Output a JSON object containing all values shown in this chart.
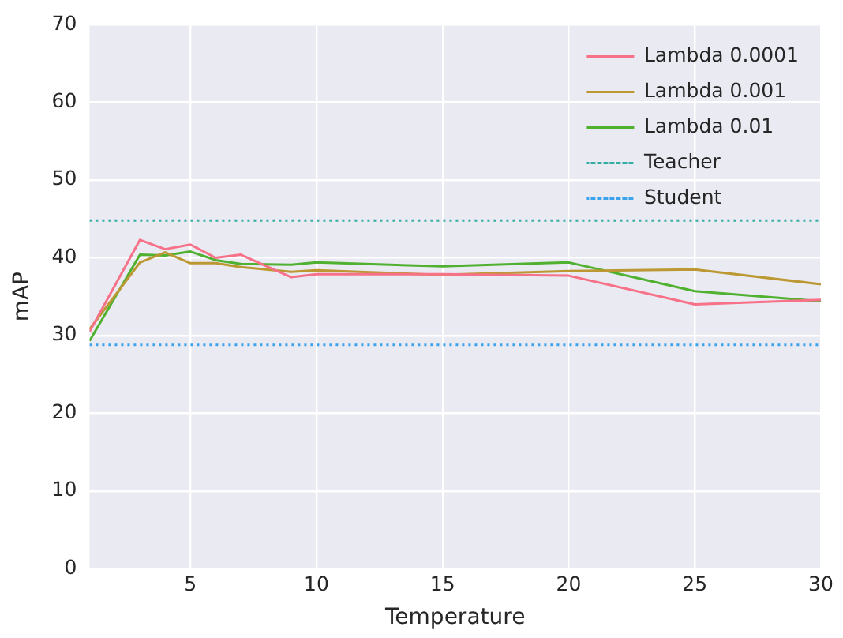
{
  "chart_data": {
    "type": "line",
    "xlabel": "Temperature",
    "ylabel": "mAP",
    "x": [
      1,
      3,
      4,
      5,
      6,
      7,
      9,
      10,
      15,
      20,
      25,
      30
    ],
    "series": [
      {
        "name": "Lambda 0.0001",
        "color": "#f77189",
        "values": [
          30.5,
          42.3,
          41.1,
          41.7,
          40.0,
          40.4,
          37.5,
          37.9,
          37.9,
          37.7,
          34.0,
          34.6
        ]
      },
      {
        "name": "Lambda 0.001",
        "color": "#bb9832",
        "values": [
          30.8,
          39.4,
          40.7,
          39.3,
          39.3,
          38.8,
          38.2,
          38.4,
          37.8,
          38.3,
          38.5,
          36.6
        ]
      },
      {
        "name": "Lambda 0.01",
        "color": "#50b131",
        "values": [
          29.3,
          40.4,
          40.3,
          40.8,
          39.7,
          39.2,
          39.1,
          39.4,
          38.9,
          39.4,
          35.7,
          34.4
        ]
      }
    ],
    "ref_lines": [
      {
        "axis": "y",
        "value": 44.8,
        "label": "Teacher",
        "color": "#36ada4",
        "line_style": "dotted"
      },
      {
        "axis": "y",
        "value": 28.8,
        "label": "Student",
        "color": "#3ba3ec",
        "line_style": "dotted"
      }
    ],
    "xlim": [
      1,
      30
    ],
    "xticks": [
      5,
      10,
      15,
      20,
      25,
      30
    ],
    "ylim": [
      0,
      70
    ],
    "yticks": [
      0,
      10,
      20,
      30,
      40,
      50,
      60,
      70
    ],
    "grid": true,
    "legend": "top right",
    "marker": "none",
    "line_style": "solid"
  }
}
